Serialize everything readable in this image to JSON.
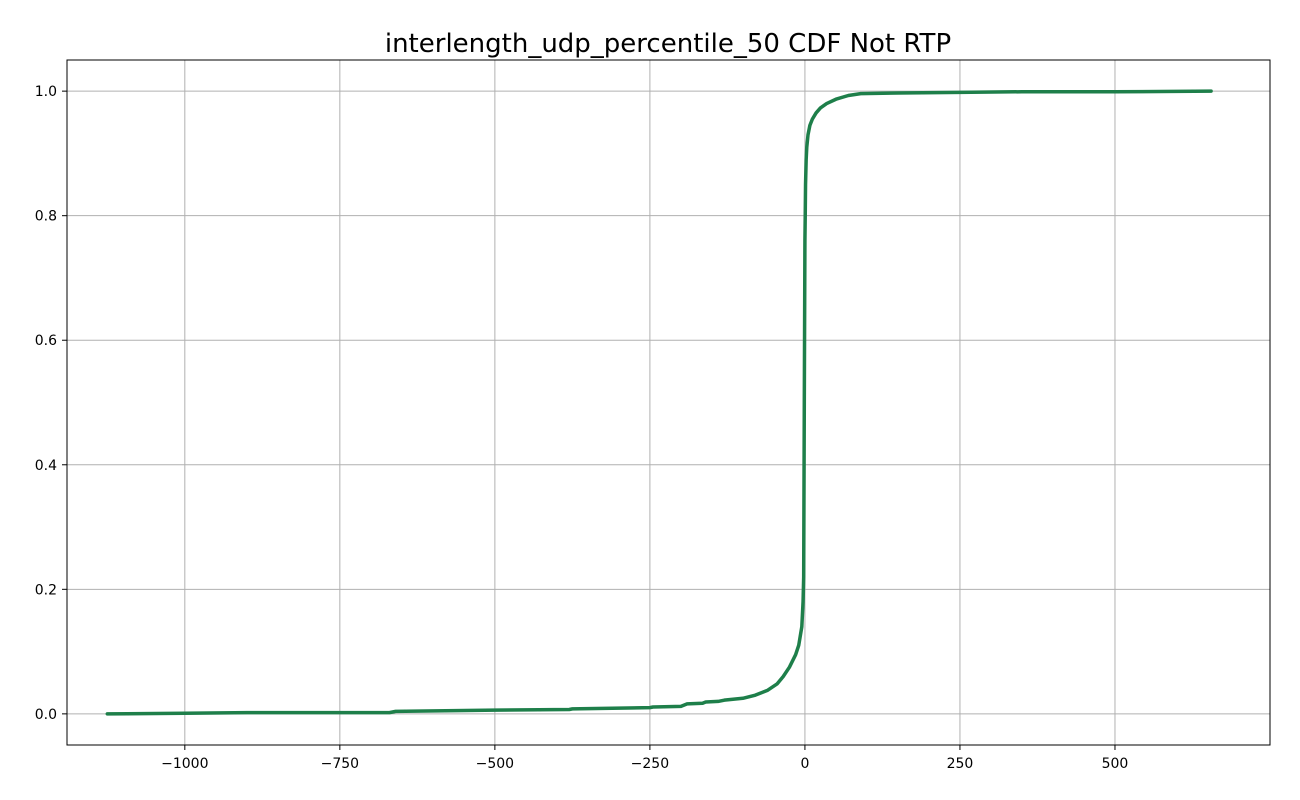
{
  "chart_data": {
    "type": "line",
    "title": "interlength_udp_percentile_50 CDF Not RTP",
    "xlabel": "",
    "ylabel": "",
    "xlim": [
      -1190,
      750
    ],
    "ylim": [
      -0.05,
      1.05
    ],
    "grid": true,
    "x_ticks": [
      -1000,
      -750,
      -500,
      -250,
      0,
      250,
      500
    ],
    "x_tick_labels": [
      "−1000",
      "−750",
      "−500",
      "−250",
      "0",
      "250",
      "500"
    ],
    "y_ticks": [
      0.0,
      0.2,
      0.4,
      0.6,
      0.8,
      1.0
    ],
    "y_tick_labels": [
      "0.0",
      "0.2",
      "0.4",
      "0.6",
      "0.8",
      "1.0"
    ],
    "series": [
      {
        "color": "#1e7f4a",
        "x": [
          -1125,
          -1000,
          -900,
          -800,
          -670,
          -660,
          -500,
          -380,
          -375,
          -250,
          -245,
          -200,
          -195,
          -190,
          -165,
          -160,
          -140,
          -130,
          -100,
          -80,
          -60,
          -45,
          -35,
          -25,
          -15,
          -10,
          -5,
          -3,
          -2,
          -1,
          0,
          0.5,
          1,
          2,
          3,
          5,
          8,
          12,
          18,
          25,
          35,
          50,
          70,
          90,
          150,
          250,
          350,
          500,
          655
        ],
        "y": [
          0.0,
          0.001,
          0.002,
          0.002,
          0.002,
          0.004,
          0.006,
          0.007,
          0.008,
          0.01,
          0.011,
          0.012,
          0.014,
          0.016,
          0.017,
          0.019,
          0.02,
          0.022,
          0.025,
          0.03,
          0.038,
          0.048,
          0.06,
          0.075,
          0.095,
          0.11,
          0.14,
          0.18,
          0.22,
          0.5,
          0.76,
          0.8,
          0.85,
          0.89,
          0.91,
          0.93,
          0.945,
          0.955,
          0.965,
          0.973,
          0.98,
          0.987,
          0.993,
          0.996,
          0.997,
          0.998,
          0.999,
          0.999,
          1.0
        ]
      }
    ]
  }
}
